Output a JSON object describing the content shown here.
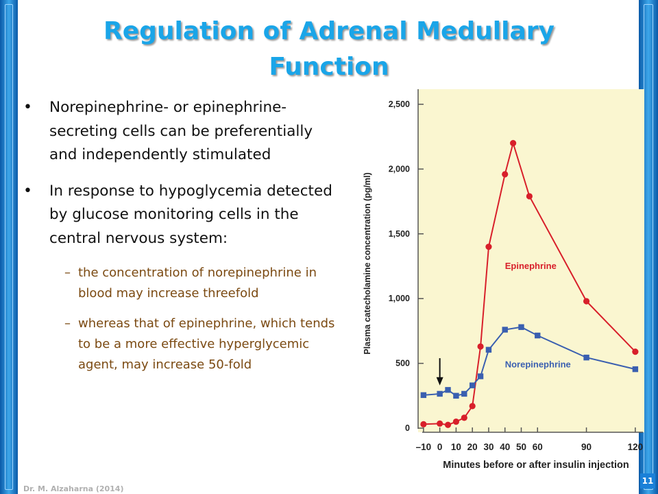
{
  "slide": {
    "title_line1": "Regulation  of  Adrenal  Medullary",
    "title_line2": "Function",
    "bullets": [
      "Norepinephrine- or epinephrine-secreting cells can be preferentially and independently stimulated",
      "In response to hypoglycemia detected by glucose monitoring cells in the central nervous system:"
    ],
    "sub_bullets": [
      "the concentration of norepinephrine in blood may increase threefold",
      "whereas that of epinephrine, which tends to be a more effective hyperglycemic agent, may increase 50-fold"
    ],
    "footer": "Dr. M. Alzaharna (2014)",
    "page_number": "11"
  },
  "colors": {
    "title": "#1aa5e8",
    "sidebar": "#1e88d8",
    "sub_text": "#7b4a12",
    "chart_bg": "#faf6d0",
    "epinephrine": "#d81f2a",
    "norepinephrine": "#3a5fb0"
  },
  "chart_data": {
    "type": "line",
    "title": "",
    "xlabel": "Minutes before or after insulin injection",
    "ylabel": "Plasma catecholamine concentration (pg/ml)",
    "xlim": [
      -15,
      123
    ],
    "ylim": [
      0,
      2500
    ],
    "x_ticks": [
      -10,
      0,
      10,
      20,
      30,
      40,
      50,
      60,
      90,
      120
    ],
    "x_tick_labels": [
      "–10",
      "0",
      "10",
      "20",
      "30",
      "40",
      "50",
      "60",
      "90",
      "120"
    ],
    "y_ticks": [
      0,
      500,
      1000,
      1500,
      2000,
      2500
    ],
    "y_tick_labels": [
      "0",
      "500",
      "1,000",
      "1,500",
      "2,000",
      "2,500"
    ],
    "series": [
      {
        "name": "Epinephrine",
        "marker": "circle",
        "x": [
          -10,
          0,
          5,
          10,
          15,
          20,
          25,
          30,
          40,
          45,
          55,
          90,
          120
        ],
        "y": [
          30,
          35,
          25,
          50,
          80,
          170,
          630,
          1400,
          1960,
          2200,
          1790,
          980,
          590
        ]
      },
      {
        "name": "Norepinephrine",
        "marker": "square",
        "x": [
          -10,
          0,
          5,
          10,
          15,
          20,
          25,
          30,
          40,
          50,
          60,
          90,
          120
        ],
        "y": [
          255,
          265,
          295,
          250,
          265,
          330,
          400,
          605,
          760,
          780,
          715,
          545,
          455
        ]
      }
    ],
    "annotations": [
      {
        "text": "Epinephrine",
        "x": 40,
        "y": 1230
      },
      {
        "text": "Norepinephrine",
        "x": 40,
        "y": 470
      },
      {
        "text": "",
        "kind": "arrow-down",
        "x": 0,
        "y_from": 540,
        "y_to": 330
      }
    ],
    "grid": false,
    "legend": "inline-labels"
  }
}
